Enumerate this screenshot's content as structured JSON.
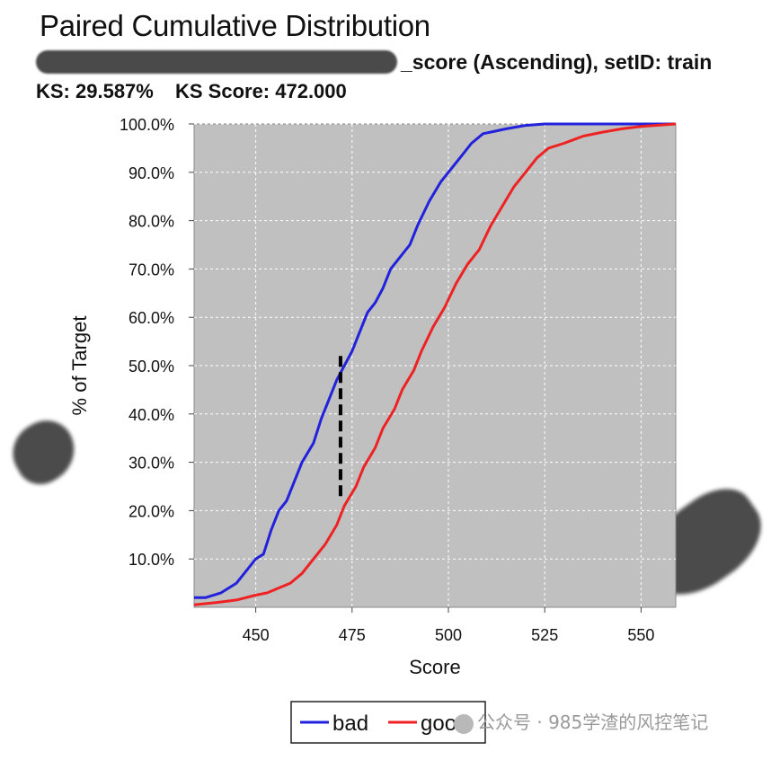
{
  "header": {
    "title": "Paired Cumulative Distribution",
    "subtitle_suffix": "_score (Ascending), setID: train",
    "ks": "KS: 29.587%",
    "ks_score": "KS Score: 472.000"
  },
  "watermark": "公众号 · 985学渣的风控笔记",
  "colors": {
    "plot_bg": "#c0c0c0",
    "bad": "#2222dd",
    "good": "#ee2222",
    "ks_line": "#000000"
  },
  "chart_data": {
    "type": "line",
    "title": "Paired Cumulative Distribution",
    "xlabel": "Score",
    "ylabel": "% of Target",
    "xlim": [
      434,
      559
    ],
    "ylim": [
      0,
      100
    ],
    "x_ticks": [
      450,
      475,
      500,
      525,
      550
    ],
    "x_tick_labels": [
      "450",
      "475",
      "500",
      "525",
      "550"
    ],
    "y_ticks": [
      10,
      20,
      30,
      40,
      50,
      60,
      70,
      80,
      90,
      100
    ],
    "y_tick_labels": [
      "10.0%",
      "20.0%",
      "30.0%",
      "40.0%",
      "50.0%",
      "60.0%",
      "70.0%",
      "80.0%",
      "90.0%",
      "100.0%"
    ],
    "grid": true,
    "legend_position": "bottom",
    "ks_marker": {
      "x": 472,
      "y_from": 22,
      "y_to": 52
    },
    "series": [
      {
        "name": "bad",
        "color": "#2222dd",
        "points": [
          [
            434,
            2
          ],
          [
            437,
            2
          ],
          [
            441,
            3
          ],
          [
            445,
            5
          ],
          [
            448,
            8
          ],
          [
            450,
            10
          ],
          [
            452,
            11
          ],
          [
            454,
            16
          ],
          [
            456,
            20
          ],
          [
            458,
            22
          ],
          [
            460,
            26
          ],
          [
            462,
            30
          ],
          [
            465,
            34
          ],
          [
            467,
            39
          ],
          [
            469,
            43
          ],
          [
            471,
            47
          ],
          [
            473,
            50
          ],
          [
            475,
            53
          ],
          [
            477,
            57
          ],
          [
            479,
            61
          ],
          [
            481,
            63
          ],
          [
            483,
            66
          ],
          [
            485,
            70
          ],
          [
            487,
            72
          ],
          [
            490,
            75
          ],
          [
            492,
            79
          ],
          [
            495,
            84
          ],
          [
            498,
            88
          ],
          [
            500,
            90
          ],
          [
            503,
            93
          ],
          [
            506,
            96
          ],
          [
            509,
            98
          ],
          [
            512,
            98.5
          ],
          [
            515,
            99
          ],
          [
            520,
            99.7
          ],
          [
            525,
            100
          ],
          [
            559,
            100
          ]
        ]
      },
      {
        "name": "good",
        "color": "#ee2222",
        "points": [
          [
            434,
            0.5
          ],
          [
            440,
            1
          ],
          [
            445,
            1.5
          ],
          [
            450,
            2.5
          ],
          [
            453,
            3
          ],
          [
            456,
            4
          ],
          [
            459,
            5
          ],
          [
            462,
            7
          ],
          [
            465,
            10
          ],
          [
            468,
            13
          ],
          [
            471,
            17
          ],
          [
            473,
            21
          ],
          [
            476,
            25
          ],
          [
            478,
            29
          ],
          [
            481,
            33
          ],
          [
            483,
            37
          ],
          [
            486,
            41
          ],
          [
            488,
            45
          ],
          [
            491,
            49
          ],
          [
            493,
            53
          ],
          [
            496,
            58
          ],
          [
            499,
            62
          ],
          [
            502,
            67
          ],
          [
            505,
            71
          ],
          [
            508,
            74
          ],
          [
            511,
            79
          ],
          [
            514,
            83
          ],
          [
            517,
            87
          ],
          [
            520,
            90
          ],
          [
            523,
            93
          ],
          [
            526,
            95
          ],
          [
            530,
            96
          ],
          [
            535,
            97.5
          ],
          [
            540,
            98.3
          ],
          [
            545,
            99
          ],
          [
            550,
            99.5
          ],
          [
            559,
            100
          ]
        ]
      }
    ]
  }
}
